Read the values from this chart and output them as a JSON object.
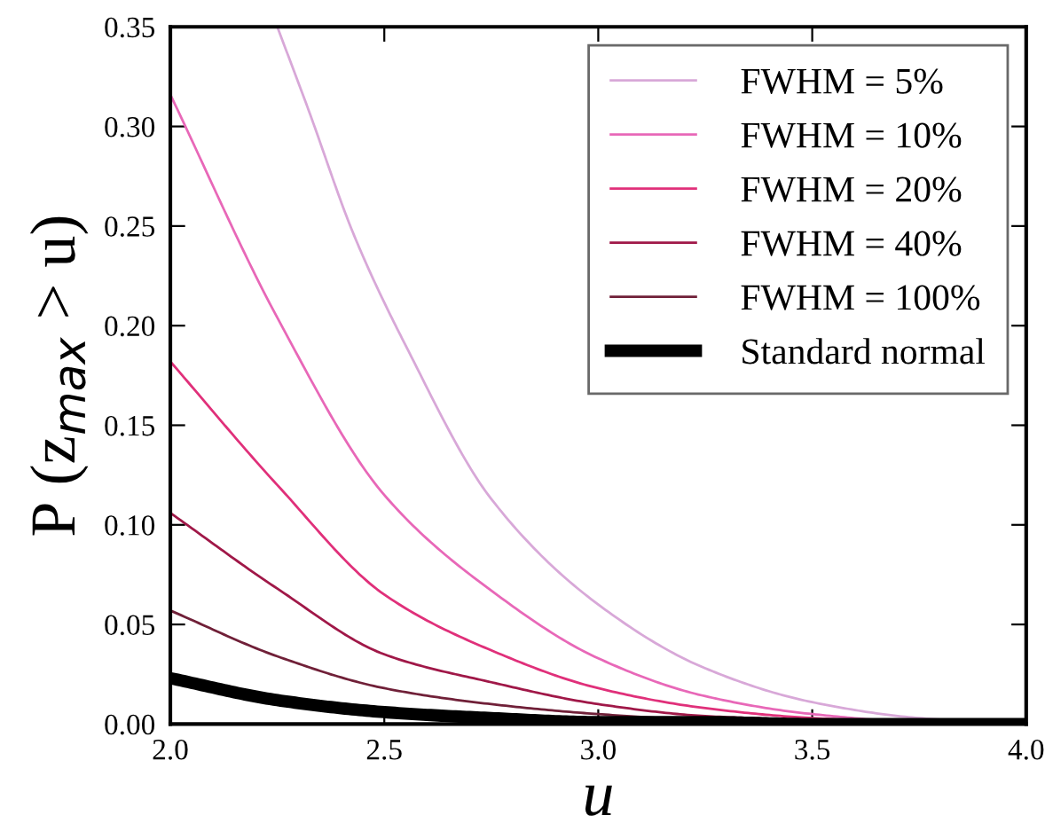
{
  "chart_data": {
    "type": "line",
    "xlabel": "u",
    "ylabel": "P (z$_{max}$ > u)",
    "xlim": [
      2.0,
      4.0
    ],
    "ylim": [
      0.0,
      0.35
    ],
    "xticks": [
      {
        "value": 2.0,
        "label": "2.0"
      },
      {
        "value": 2.5,
        "label": "2.5"
      },
      {
        "value": 3.0,
        "label": "3.0"
      },
      {
        "value": 3.5,
        "label": "3.5"
      },
      {
        "value": 4.0,
        "label": "4.0"
      }
    ],
    "yticks": [
      {
        "value": 0.0,
        "label": "0.00"
      },
      {
        "value": 0.05,
        "label": "0.05"
      },
      {
        "value": 0.1,
        "label": "0.10"
      },
      {
        "value": 0.15,
        "label": "0.15"
      },
      {
        "value": 0.2,
        "label": "0.20"
      },
      {
        "value": 0.25,
        "label": "0.25"
      },
      {
        "value": 0.3,
        "label": "0.30"
      },
      {
        "value": 0.35,
        "label": "0.35"
      }
    ],
    "grid": false,
    "legend": "top right",
    "marker": "none",
    "line_style": "solid",
    "series": [
      {
        "name": "FWHM = 5%",
        "color": "#d8a8d8",
        "x": [
          2.25,
          2.32,
          2.43,
          2.55,
          2.75,
          3.0,
          3.25,
          3.5,
          3.75,
          4.0
        ],
        "values": [
          0.35,
          0.31,
          0.245,
          0.19,
          0.113,
          0.06,
          0.028,
          0.011,
          0.003,
          0.0
        ]
      },
      {
        "name": "FWHM = 10%",
        "color": "#e868b8",
        "x": [
          2.0,
          2.25,
          2.5,
          2.75,
          3.0,
          3.25,
          3.5,
          3.75,
          4.0
        ],
        "values": [
          0.316,
          0.204,
          0.115,
          0.067,
          0.033,
          0.014,
          0.005,
          0.001,
          0.0
        ]
      },
      {
        "name": "FWHM = 20%",
        "color": "#e0307a",
        "x": [
          2.0,
          2.25,
          2.5,
          2.75,
          3.0,
          3.25,
          3.5,
          3.75,
          4.0
        ],
        "values": [
          0.182,
          0.12,
          0.065,
          0.037,
          0.018,
          0.008,
          0.003,
          0.001,
          0.0
        ]
      },
      {
        "name": "FWHM = 40%",
        "color": "#a01848",
        "x": [
          2.0,
          2.25,
          2.5,
          2.75,
          3.0,
          3.25,
          3.5,
          3.75,
          4.0
        ],
        "values": [
          0.106,
          0.068,
          0.035,
          0.021,
          0.01,
          0.004,
          0.002,
          0.0,
          0.0
        ]
      },
      {
        "name": "FWHM = 100%",
        "color": "#702038",
        "x": [
          2.0,
          2.25,
          2.5,
          2.75,
          3.0,
          3.25,
          3.5,
          3.75,
          4.0
        ],
        "values": [
          0.057,
          0.034,
          0.018,
          0.01,
          0.005,
          0.002,
          0.001,
          0.0,
          0.0
        ]
      },
      {
        "name": "Standard normal",
        "color": "#000000",
        "x": [
          2.0,
          2.25,
          2.5,
          2.75,
          3.0,
          3.25,
          3.5,
          3.75,
          4.0
        ],
        "values": [
          0.023,
          0.012,
          0.006,
          0.003,
          0.001,
          0.001,
          0.0,
          0.0,
          0.0
        ]
      }
    ]
  }
}
